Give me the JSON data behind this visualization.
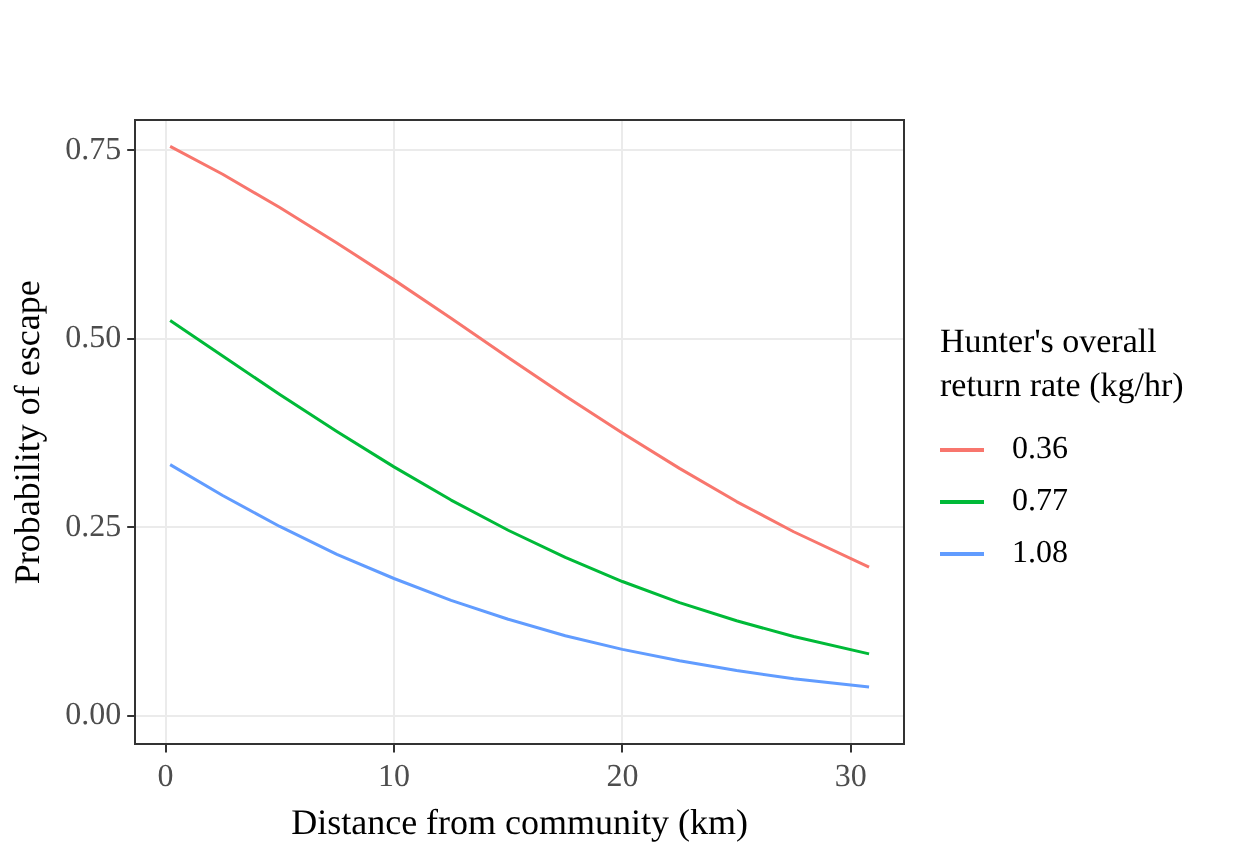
{
  "chart_data": {
    "type": "line",
    "xlabel": "Distance from community (km)",
    "ylabel": "Probability of escape",
    "legend_title": "Hunter's overall return rate (kg/hr)",
    "x": [
      0.2,
      2.5,
      5,
      7.5,
      10,
      12.5,
      15,
      17.5,
      20,
      22.5,
      25,
      27.5,
      30.8
    ],
    "series": [
      {
        "name": "0.36",
        "color": "#f8766d",
        "values": [
          0.755,
          0.718,
          0.674,
          0.627,
          0.578,
          0.527,
          0.475,
          0.424,
          0.375,
          0.328,
          0.284,
          0.244,
          0.197
        ]
      },
      {
        "name": "0.77",
        "color": "#00ba38",
        "values": [
          0.524,
          0.477,
          0.426,
          0.377,
          0.33,
          0.286,
          0.246,
          0.21,
          0.178,
          0.15,
          0.126,
          0.105,
          0.082
        ]
      },
      {
        "name": "1.08",
        "color": "#619cff",
        "values": [
          0.333,
          0.292,
          0.251,
          0.214,
          0.182,
          0.153,
          0.128,
          0.106,
          0.088,
          0.073,
          0.06,
          0.049,
          0.038
        ]
      }
    ],
    "xlim": [
      -1.33,
      32.33
    ],
    "xticks": [
      0,
      10,
      20,
      30
    ],
    "ylim": [
      -0.038,
      0.79
    ],
    "yticks": [
      {
        "value": 0,
        "label": "0.00"
      },
      {
        "value": 0.25,
        "label": "0.25"
      },
      {
        "value": 0.5,
        "label": "0.50"
      },
      {
        "value": 0.75,
        "label": "0.75"
      }
    ],
    "grid": true,
    "legend": "right",
    "marker": "none",
    "line_style": "solid"
  }
}
